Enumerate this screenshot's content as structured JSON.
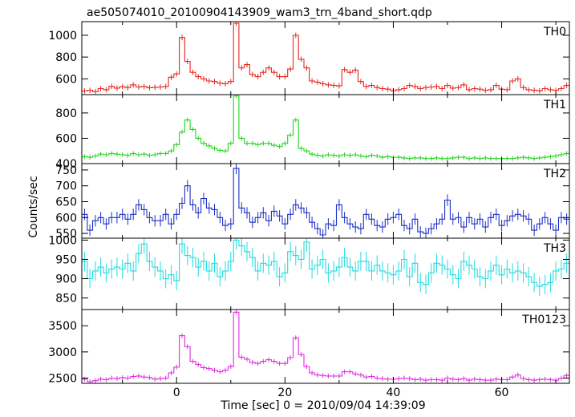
{
  "chart_data": {
    "type": "line",
    "title": "ae505074010_20100904143909_wam3_trn_4band_short.qdp",
    "xlabel": "Time [sec] 0 = 2010/09/04 14:39:09",
    "ylabel": "Counts/sec",
    "xlim": [
      -17.5,
      72.5
    ],
    "xticks": [
      0,
      20,
      40,
      60
    ],
    "bin_width": 1,
    "grid": false,
    "x": [
      -17,
      -16,
      -15,
      -14,
      -13,
      -12,
      -11,
      -10,
      -9,
      -8,
      -7,
      -6,
      -5,
      -4,
      -3,
      -2,
      -1,
      0,
      1,
      2,
      3,
      4,
      5,
      6,
      7,
      8,
      9,
      10,
      11,
      12,
      13,
      14,
      15,
      16,
      17,
      18,
      19,
      20,
      21,
      22,
      23,
      24,
      25,
      26,
      27,
      28,
      29,
      30,
      31,
      32,
      33,
      34,
      35,
      36,
      37,
      38,
      39,
      40,
      41,
      42,
      43,
      44,
      45,
      46,
      47,
      48,
      49,
      50,
      51,
      52,
      53,
      54,
      55,
      56,
      57,
      58,
      59,
      60,
      61,
      62,
      63,
      64,
      65,
      66,
      67,
      68,
      69,
      70,
      71,
      72
    ],
    "series": [
      {
        "name": "TH0",
        "color": "#e8261f",
        "ylim": [
          455,
          1125
        ],
        "yticks": [
          600,
          800,
          1000
        ],
        "err": 25,
        "values": [
          488,
          495,
          482,
          510,
          500,
          530,
          515,
          528,
          520,
          545,
          525,
          530,
          518,
          522,
          525,
          530,
          615,
          645,
          980,
          760,
          660,
          620,
          600,
          580,
          575,
          560,
          555,
          575,
          1110,
          700,
          730,
          640,
          620,
          660,
          700,
          660,
          620,
          620,
          690,
          1000,
          780,
          700,
          580,
          570,
          555,
          545,
          540,
          535,
          685,
          660,
          680,
          575,
          530,
          540,
          520,
          510,
          505,
          490,
          500,
          510,
          540,
          530,
          510,
          520,
          525,
          530,
          510,
          540,
          515,
          520,
          545,
          500,
          510,
          505,
          495,
          500,
          540,
          505,
          500,
          580,
          600,
          520,
          500,
          495,
          490,
          510,
          500,
          495,
          510,
          540
        ]
      },
      {
        "name": "TH1",
        "color": "#22d41f",
        "ylim": [
          400,
          945
        ],
        "yticks": [
          400,
          600,
          800
        ],
        "err": 18,
        "values": [
          455,
          450,
          460,
          475,
          470,
          480,
          475,
          470,
          465,
          480,
          470,
          475,
          465,
          470,
          480,
          480,
          500,
          550,
          650,
          745,
          670,
          600,
          560,
          540,
          520,
          505,
          500,
          560,
          935,
          600,
          560,
          560,
          550,
          560,
          560,
          545,
          535,
          560,
          625,
          745,
          520,
          500,
          475,
          465,
          460,
          470,
          465,
          460,
          470,
          465,
          470,
          460,
          455,
          465,
          460,
          450,
          455,
          450,
          450,
          445,
          440,
          445,
          445,
          440,
          440,
          445,
          440,
          440,
          445,
          450,
          450,
          440,
          445,
          440,
          445,
          440,
          440,
          440,
          440,
          440,
          445,
          450,
          445,
          440,
          445,
          450,
          455,
          460,
          470,
          480
        ]
      },
      {
        "name": "TH2",
        "color": "#1c2ec7",
        "ylim": [
          535,
          770
        ],
        "yticks": [
          550,
          600,
          650,
          700,
          750
        ],
        "err": 18,
        "values": [
          610,
          560,
          590,
          600,
          580,
          600,
          600,
          610,
          595,
          610,
          640,
          625,
          600,
          590,
          590,
          610,
          580,
          610,
          645,
          700,
          640,
          615,
          660,
          630,
          625,
          600,
          575,
          580,
          755,
          630,
          615,
          585,
          600,
          615,
          590,
          620,
          605,
          580,
          610,
          640,
          630,
          615,
          585,
          565,
          545,
          580,
          575,
          640,
          600,
          580,
          570,
          565,
          610,
          595,
          575,
          570,
          595,
          600,
          610,
          575,
          565,
          595,
          555,
          550,
          565,
          580,
          595,
          655,
          595,
          600,
          570,
          600,
          580,
          595,
          570,
          600,
          610,
          575,
          590,
          605,
          610,
          605,
          595,
          560,
          580,
          600,
          580,
          560,
          600,
          595
        ]
      },
      {
        "name": "TH3",
        "color": "#22dcdf",
        "ylim": [
          820,
          1005
        ],
        "yticks": [
          850,
          900,
          950,
          1000
        ],
        "err": 25,
        "values": [
          945,
          900,
          920,
          930,
          915,
          925,
          930,
          925,
          940,
          920,
          965,
          990,
          945,
          930,
          920,
          900,
          910,
          895,
          990,
          960,
          955,
          930,
          945,
          920,
          940,
          905,
          920,
          945,
          1000,
          985,
          970,
          955,
          920,
          940,
          935,
          945,
          905,
          915,
          970,
          960,
          950,
          995,
          925,
          935,
          950,
          915,
          920,
          930,
          955,
          930,
          920,
          945,
          945,
          920,
          935,
          920,
          915,
          910,
          920,
          950,
          905,
          940,
          890,
          885,
          915,
          940,
          935,
          925,
          910,
          900,
          945,
          935,
          925,
          905,
          900,
          920,
          935,
          910,
          925,
          915,
          920,
          915,
          905,
          890,
          880,
          885,
          890,
          920,
          925,
          940
        ]
      },
      {
        "name": "TH0123",
        "color": "#e02ee0",
        "ylim": [
          2400,
          3810
        ],
        "yticks": [
          2500,
          3000,
          3500
        ],
        "err": 45,
        "values": [
          2480,
          2430,
          2450,
          2480,
          2470,
          2500,
          2490,
          2510,
          2500,
          2530,
          2540,
          2520,
          2510,
          2480,
          2490,
          2500,
          2600,
          2710,
          3310,
          3100,
          2820,
          2760,
          2700,
          2680,
          2650,
          2620,
          2650,
          2720,
          3760,
          2900,
          2860,
          2800,
          2780,
          2820,
          2850,
          2820,
          2780,
          2780,
          2890,
          3270,
          2950,
          2720,
          2600,
          2560,
          2550,
          2540,
          2540,
          2540,
          2620,
          2620,
          2580,
          2560,
          2520,
          2530,
          2500,
          2490,
          2480,
          2480,
          2490,
          2500,
          2490,
          2470,
          2480,
          2460,
          2470,
          2470,
          2460,
          2500,
          2480,
          2470,
          2490,
          2460,
          2480,
          2470,
          2460,
          2460,
          2480,
          2470,
          2470,
          2520,
          2560,
          2490,
          2470,
          2460,
          2470,
          2480,
          2470,
          2460,
          2500,
          2550
        ]
      }
    ]
  }
}
